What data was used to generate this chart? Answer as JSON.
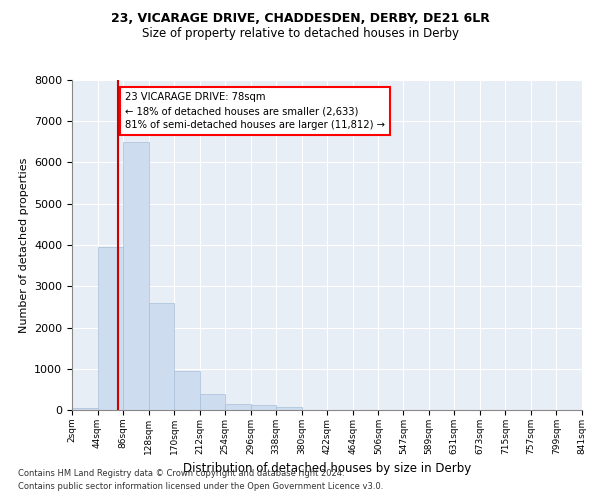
{
  "title1": "23, VICARAGE DRIVE, CHADDESDEN, DERBY, DE21 6LR",
  "title2": "Size of property relative to detached houses in Derby",
  "xlabel": "Distribution of detached houses by size in Derby",
  "ylabel": "Number of detached properties",
  "footnote1": "Contains HM Land Registry data © Crown copyright and database right 2024.",
  "footnote2": "Contains public sector information licensed under the Open Government Licence v3.0.",
  "annotation_line1": "23 VICARAGE DRIVE: 78sqm",
  "annotation_line2": "← 18% of detached houses are smaller (2,633)",
  "annotation_line3": "81% of semi-detached houses are larger (11,812) →",
  "property_size": 78,
  "bar_color": "#cddcef",
  "bar_edgecolor": "#a8bfd8",
  "vline_color": "#cc0000",
  "background_color": "#e8eef6",
  "ylim": [
    0,
    8000
  ],
  "yticks": [
    0,
    1000,
    2000,
    3000,
    4000,
    5000,
    6000,
    7000,
    8000
  ],
  "bin_edges": [
    2,
    44,
    86,
    128,
    170,
    212,
    254,
    296,
    338,
    380,
    422,
    464,
    506,
    547,
    589,
    631,
    673,
    715,
    757,
    799,
    841
  ],
  "bin_labels": [
    "2sqm",
    "44sqm",
    "86sqm",
    "128sqm",
    "170sqm",
    "212sqm",
    "254sqm",
    "296sqm",
    "338sqm",
    "380sqm",
    "422sqm",
    "464sqm",
    "506sqm",
    "547sqm",
    "589sqm",
    "631sqm",
    "673sqm",
    "715sqm",
    "757sqm",
    "799sqm",
    "841sqm"
  ],
  "bar_heights": [
    50,
    3950,
    6500,
    2600,
    950,
    400,
    150,
    120,
    80,
    0,
    0,
    0,
    0,
    0,
    0,
    0,
    0,
    0,
    0,
    0
  ]
}
